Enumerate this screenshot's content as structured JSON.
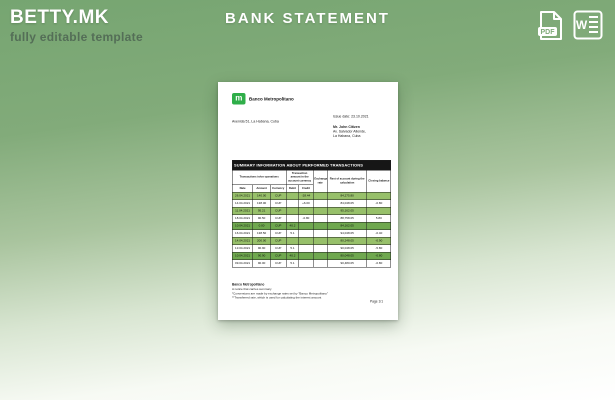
{
  "page": {
    "brand": "BETTY.MK",
    "tagline": "fully editable template",
    "title": "BANK STATEMENT"
  },
  "icons": {
    "pdf_label": "PDF",
    "word_label": "W"
  },
  "colors": {
    "background_top": "#76a571",
    "background_bottom": "#ffffff",
    "logo_green": "#2fae49",
    "row_green": "#97c06a",
    "row_dark_green": "#6fa84f",
    "table_title_bg": "#161616"
  },
  "document": {
    "logo_letter": "m",
    "bank_name": "Banco Metropolitano",
    "bank_address": "Avenida 51, La Habana, Cuba",
    "issue_date": "Issue date: 23.10.2021",
    "recipient": [
      "Mr. John Citizen",
      "Av. Salvador Allende,",
      "La Habana, Cuba"
    ],
    "table": {
      "title": "SUMMARY INFORMATION ABOUT PERFORMED TRANSACTIONS",
      "group_headers": {
        "operations": "Transactions in/on operations",
        "account_amount": "Transaction amount in the account currency",
        "exchange_rate": "Exchange rate",
        "rest_of_account": "Rest of account during the calculation",
        "closing_balance": "Closing balance"
      },
      "sub_headers": {
        "date": "Date",
        "amount": "Amount",
        "currency": "Currency",
        "debit": "Debit",
        "credit": "Credit"
      },
      "rows": [
        {
          "date": "26.04.2021",
          "amount": "140.00",
          "currency": "CUP",
          "debit": "",
          "credit": "-28.44",
          "rate": "",
          "rest": "84,275.80",
          "closing": "",
          "shade": "green"
        },
        {
          "date": "14.04.2021",
          "amount": "138.00",
          "currency": "CUP",
          "debit": "",
          "credit": "+6.00",
          "rate": "",
          "rest": "84,048.05",
          "closing": "-0.80",
          "shade": "white"
        },
        {
          "date": "11.04.2021",
          "amount": "95.21",
          "currency": "CUP",
          "debit": "",
          "credit": "",
          "rate": "",
          "rest": "95,162.05",
          "closing": "",
          "shade": "green"
        },
        {
          "date": "18.04.2021",
          "amount": "90.50",
          "currency": "CUP",
          "debit": "",
          "credit": "-0.80",
          "rate": "",
          "rest": "88,758.05",
          "closing": "5.80",
          "shade": "white"
        },
        {
          "date": "10.04.2021",
          "amount": "0.00",
          "currency": "CUP",
          "debit": "40.2",
          "credit": "",
          "rate": "",
          "rest": "84,162.05",
          "closing": "",
          "shade": "dark"
        },
        {
          "date": "16.04.2021",
          "amount": "138.50",
          "currency": "CUP",
          "debit": "5.1",
          "credit": "",
          "rate": "",
          "rest": "94,048.05",
          "closing": "-0.40",
          "shade": "white"
        },
        {
          "date": "14.04.2021",
          "amount": "200.00",
          "currency": "CUP",
          "debit": "",
          "credit": "",
          "rate": "",
          "rest": "80,248.05",
          "closing": "-0.90",
          "shade": "green"
        },
        {
          "date": "13.04.2021",
          "amount": "90.90",
          "currency": "CUP",
          "debit": "5.1",
          "credit": "",
          "rate": "",
          "rest": "90,048.05",
          "closing": "-5.80",
          "shade": "white"
        },
        {
          "date": "10.04.2021",
          "amount": "90.90",
          "currency": "CUP",
          "debit": "40.2",
          "credit": "",
          "rate": "",
          "rest": "80,048.05",
          "closing": "-0.80",
          "shade": "dark"
        },
        {
          "date": "09.04.2021",
          "amount": "90.00",
          "currency": "CUP",
          "debit": "5.1",
          "credit": "",
          "rate": "",
          "rest": "90,480.05",
          "closing": "-0.80",
          "shade": "white"
        }
      ]
    },
    "footer": {
      "bold_line": "Banco Metropolitano",
      "line2": "A notice that carries summary",
      "note1": "*Conversions are made by exchange rates set by \"Banco Metropolitano\"",
      "note2": "**Transferred rate, which is used for calculating the interest amount",
      "page": "Page 1/1"
    }
  }
}
